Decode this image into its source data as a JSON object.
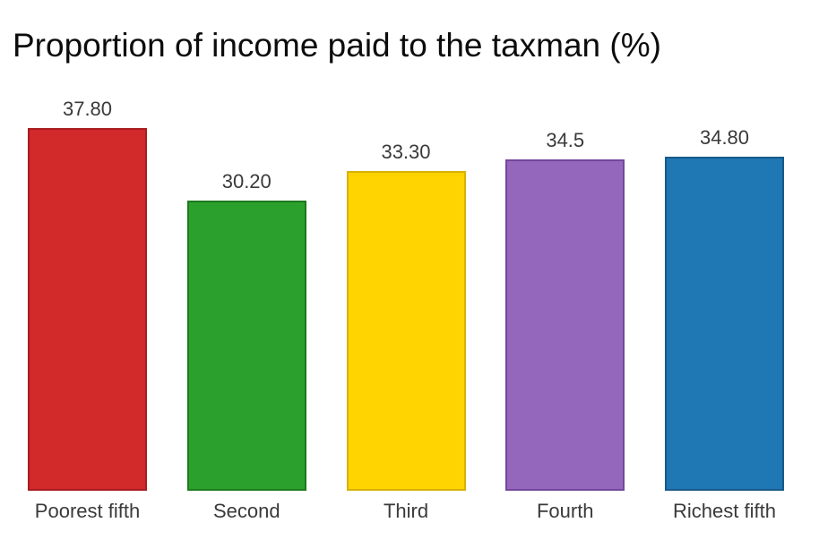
{
  "chart_data": {
    "type": "bar",
    "title": "Proportion of income paid to the taxman (%)",
    "categories": [
      "Poorest fifth",
      "Second",
      "Third",
      "Fourth",
      "Richest fifth"
    ],
    "values": [
      37.8,
      30.2,
      33.3,
      34.5,
      34.8
    ],
    "value_labels": [
      "37.80",
      "30.20",
      "33.30",
      "34.5",
      "34.80"
    ],
    "bar_colors": [
      "#d2292b",
      "#2ca02c",
      "#ffd400",
      "#9467bd",
      "#1f77b4"
    ],
    "bar_border_colors": [
      "#a81c20",
      "#1d7a1d",
      "#d8b105",
      "#73479c",
      "#175a88"
    ],
    "xlabel": "",
    "ylabel": "",
    "ylim": [
      0,
      37.8
    ],
    "grid": false,
    "legend": "none",
    "label_color": "#3a3a3a",
    "title_color": "#0c0c0c",
    "background": "#ffffff"
  }
}
